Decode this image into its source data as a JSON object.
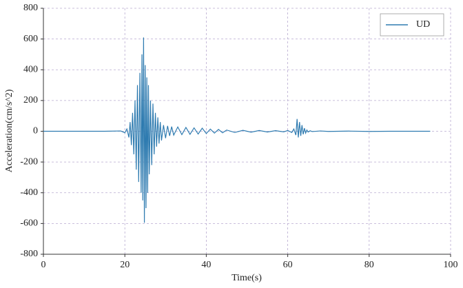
{
  "chart_data": {
    "type": "line",
    "xlabel": "Time(s)",
    "ylabel": "Acceleration(cm/s^2)",
    "x": [
      0,
      5,
      10,
      15,
      19,
      20,
      20.5,
      21,
      21.3,
      21.6,
      21.9,
      22.2,
      22.5,
      22.8,
      23.1,
      23.4,
      23.7,
      24.0,
      24.2,
      24.4,
      24.6,
      24.8,
      25.0,
      25.2,
      25.4,
      25.6,
      25.8,
      26.0,
      26.3,
      26.6,
      26.9,
      27.2,
      27.5,
      27.8,
      28.1,
      28.4,
      28.7,
      29,
      29.5,
      30,
      30.5,
      31,
      31.5,
      32,
      33,
      34,
      35,
      36,
      37,
      38,
      39,
      40,
      41,
      42,
      43,
      44,
      45,
      47,
      49,
      51,
      53,
      55,
      57,
      59,
      60,
      61,
      61.5,
      62,
      62.3,
      62.6,
      62.9,
      63.2,
      63.5,
      63.8,
      64.1,
      64.4,
      64.7,
      65,
      65.5,
      66,
      68,
      70,
      75,
      80,
      85,
      90,
      95
    ],
    "series": [
      {
        "name": "UD",
        "color": "#2e7bb0",
        "values": [
          0,
          0,
          0,
          0,
          2,
          -10,
          15,
          -40,
          60,
          -90,
          120,
          -150,
          200,
          -250,
          300,
          -330,
          380,
          -400,
          500,
          -450,
          610,
          -595,
          430,
          -500,
          350,
          -400,
          300,
          -280,
          200,
          -220,
          180,
          -150,
          120,
          -100,
          90,
          -80,
          60,
          -60,
          40,
          -45,
          35,
          -30,
          30,
          -25,
          28,
          -22,
          25,
          -20,
          22,
          -18,
          20,
          -15,
          14,
          -12,
          12,
          -10,
          8,
          -8,
          6,
          -6,
          5,
          -5,
          4,
          -4,
          5,
          -8,
          15,
          -25,
          80,
          -40,
          60,
          -30,
          40,
          -20,
          20,
          -12,
          8,
          -5,
          3,
          -2,
          2,
          -1,
          1,
          -1,
          0,
          0,
          0
        ]
      }
    ],
    "xlim": [
      0,
      100
    ],
    "xticks": [
      0,
      20,
      40,
      60,
      80,
      100
    ],
    "ylim": [
      -800,
      800
    ],
    "yticks": [
      -800,
      -600,
      -400,
      -200,
      0,
      200,
      400,
      600,
      800
    ],
    "grid": true,
    "legend": "upper right"
  }
}
